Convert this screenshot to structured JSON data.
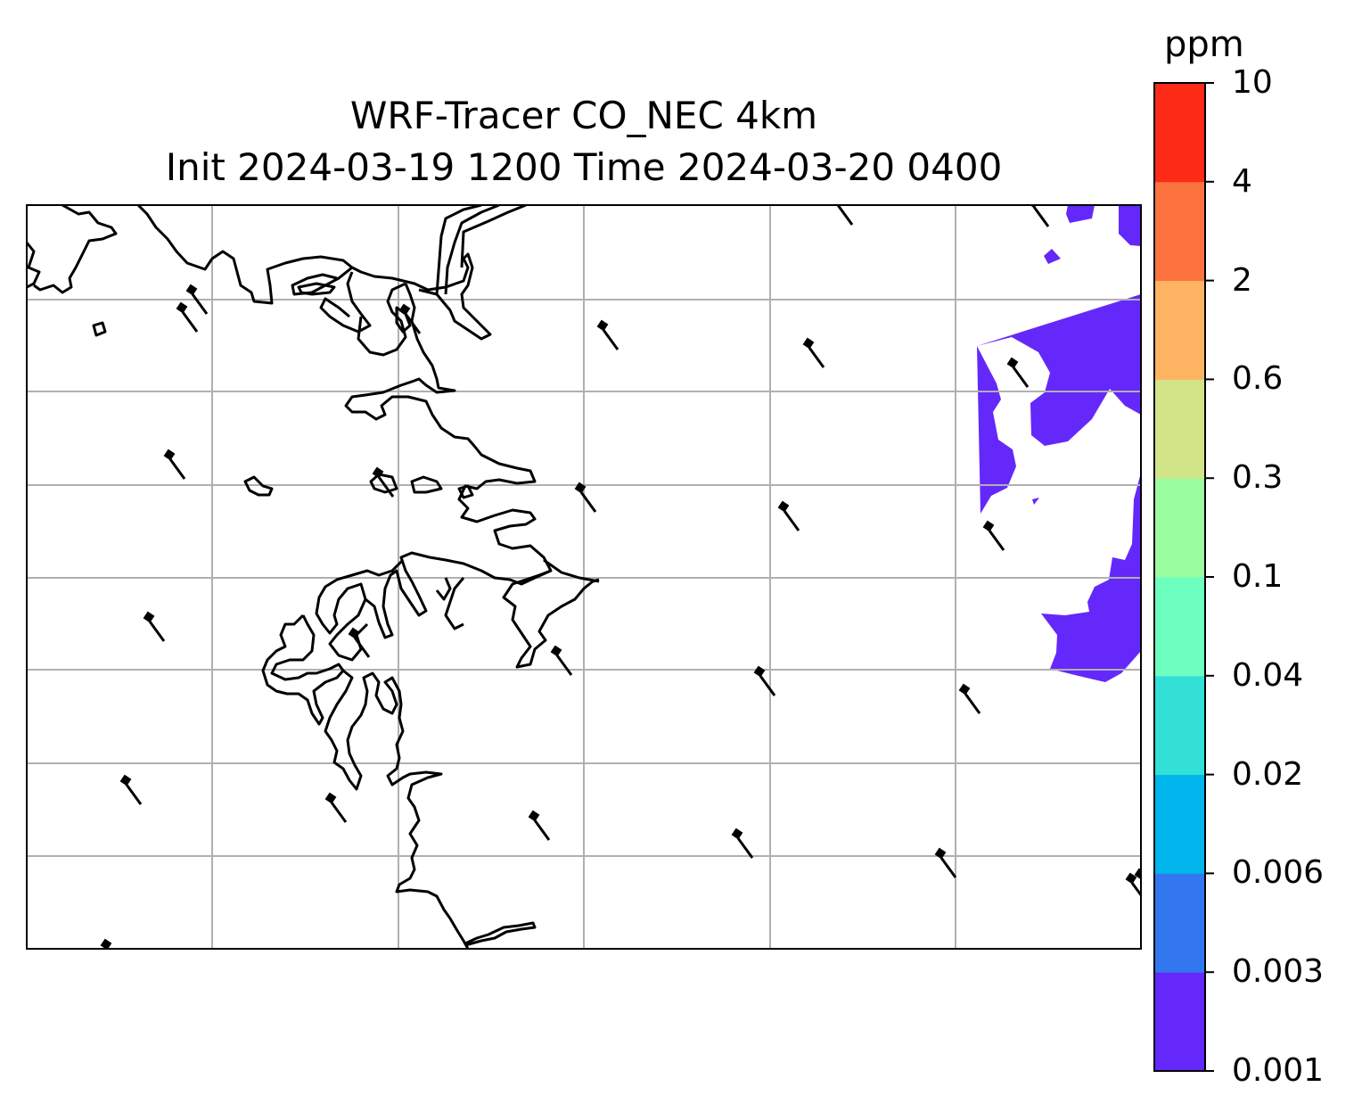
{
  "title": {
    "line1": "WRF-Tracer CO_NEC 4km",
    "line2": "Init 2024-03-19 1200 Time 2024-03-20 0400"
  },
  "colorbar": {
    "units": "ppm",
    "levels": [
      "0.001",
      "0.003",
      "0.006",
      "0.02",
      "0.04",
      "0.1",
      "0.3",
      "0.6",
      "2",
      "4",
      "10"
    ],
    "colors": [
      "#6428fa",
      "#3377f0",
      "#00b4ec",
      "#33e0d6",
      "#6cffc0",
      "#9afea0",
      "#d2e488",
      "#fcb463",
      "#fd733f",
      "#fd2a18"
    ]
  },
  "map": {
    "gridlines": true,
    "coastline_color": "#000000",
    "grid_color": "#b0b0b0",
    "field_fill_level": "0.001",
    "wind_barbs": [
      {
        "id": 1
      },
      {
        "id": 2
      },
      {
        "id": 3
      },
      {
        "id": 4
      },
      {
        "id": 5
      },
      {
        "id": 6
      },
      {
        "id": 7
      },
      {
        "id": 8
      },
      {
        "id": 9
      },
      {
        "id": 10
      },
      {
        "id": 11
      },
      {
        "id": 12
      },
      {
        "id": 13
      },
      {
        "id": 14
      },
      {
        "id": 15
      },
      {
        "id": 16
      },
      {
        "id": 17
      },
      {
        "id": 18
      },
      {
        "id": 19
      },
      {
        "id": 20
      },
      {
        "id": 21
      },
      {
        "id": 22
      },
      {
        "id": 23
      },
      {
        "id": 24
      },
      {
        "id": 25
      },
      {
        "id": 26
      }
    ]
  }
}
